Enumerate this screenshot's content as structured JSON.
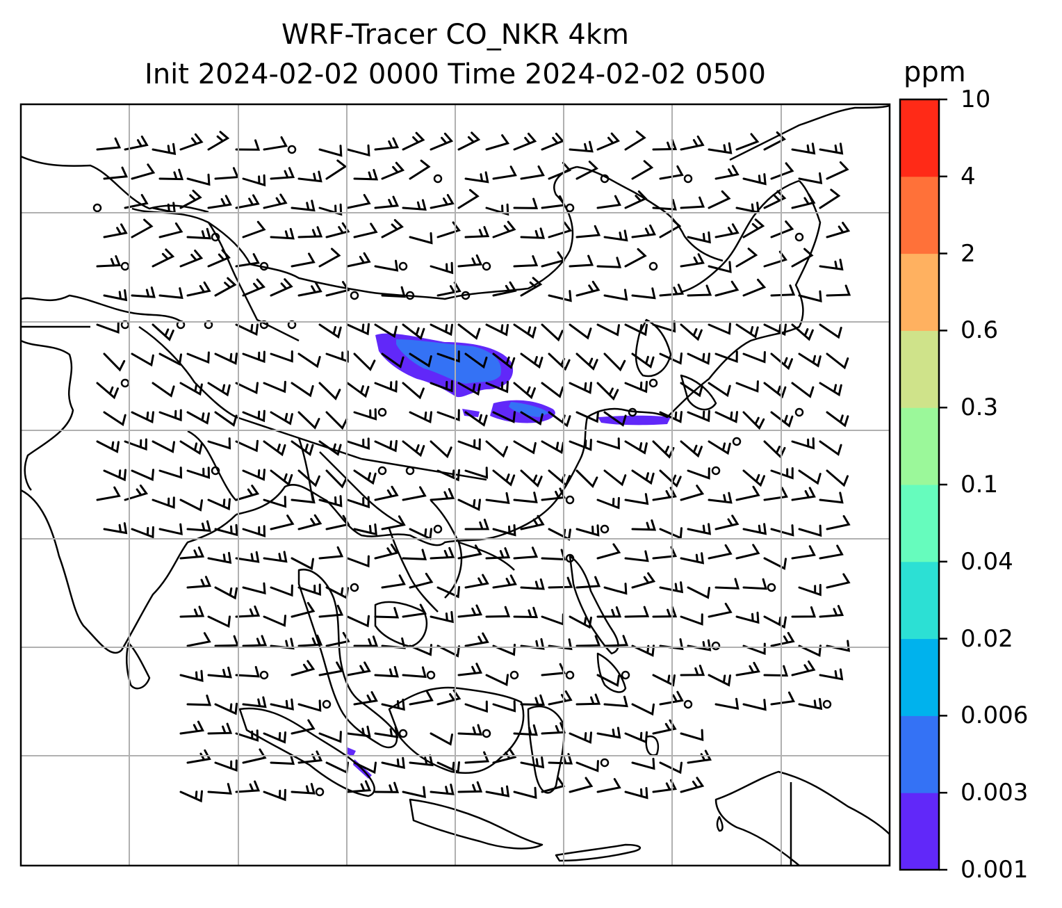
{
  "title": {
    "line1": "WRF-Tracer CO_NKR 4km",
    "line2": "Init 2024-02-02 0000 Time 2024-02-02 0500"
  },
  "colorbar": {
    "unit": "ppm",
    "ticks": [
      "0.001",
      "0.003",
      "0.006",
      "0.02",
      "0.04",
      "0.1",
      "0.3",
      "0.6",
      "2",
      "4",
      "10"
    ],
    "colors": [
      "#6128f9",
      "#3472f5",
      "#00b2ed",
      "#2ce0d4",
      "#66fcbd",
      "#9bf89a",
      "#cfe38a",
      "#ffb160",
      "#ff7139",
      "#ff2a17"
    ]
  },
  "map": {
    "grid": true,
    "features": [
      "coastlines",
      "country-borders",
      "wind-barbs",
      "calm-circles"
    ],
    "plume_color_class": "0.001-0.006"
  }
}
